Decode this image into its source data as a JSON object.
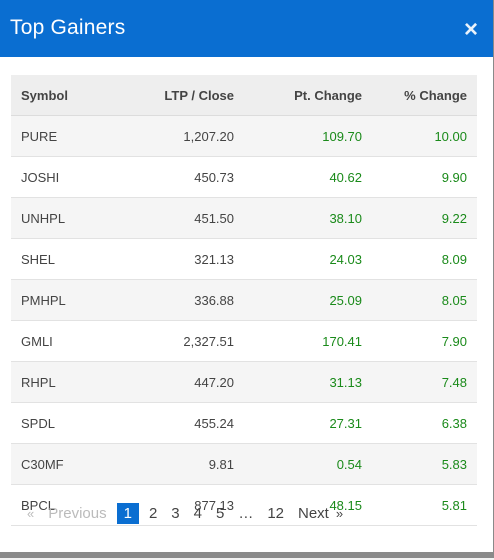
{
  "modal": {
    "title": "Top Gainers",
    "close_glyph": "×"
  },
  "table": {
    "headers": [
      "Symbol",
      "LTP / Close",
      "Pt. Change",
      "% Change"
    ],
    "rows": [
      {
        "symbol": "PURE",
        "ltp": "1,207.20",
        "pt": "109.70",
        "pct": "10.00"
      },
      {
        "symbol": "JOSHI",
        "ltp": "450.73",
        "pt": "40.62",
        "pct": "9.90"
      },
      {
        "symbol": "UNHPL",
        "ltp": "451.50",
        "pt": "38.10",
        "pct": "9.22"
      },
      {
        "symbol": "SHEL",
        "ltp": "321.13",
        "pt": "24.03",
        "pct": "8.09"
      },
      {
        "symbol": "PMHPL",
        "ltp": "336.88",
        "pt": "25.09",
        "pct": "8.05"
      },
      {
        "symbol": "GMLI",
        "ltp": "2,327.51",
        "pt": "170.41",
        "pct": "7.90"
      },
      {
        "symbol": "RHPL",
        "ltp": "447.20",
        "pt": "31.13",
        "pct": "7.48"
      },
      {
        "symbol": "SPDL",
        "ltp": "455.24",
        "pt": "27.31",
        "pct": "6.38"
      },
      {
        "symbol": "C30MF",
        "ltp": "9.81",
        "pt": "0.54",
        "pct": "5.83"
      },
      {
        "symbol": "BPCL",
        "ltp": "877.13",
        "pt": "48.15",
        "pct": "5.81"
      }
    ]
  },
  "pagination": {
    "first_arrow": "«",
    "previous": "Previous",
    "pages": [
      "1",
      "2",
      "3",
      "4",
      "5",
      "…",
      "12"
    ],
    "active_page": "1",
    "next": "Next",
    "last_arrow": "»"
  },
  "colors": {
    "header_bg": "#0a6ed1",
    "positive": "#1a8a1a",
    "active_page": "#0a6ed1"
  }
}
